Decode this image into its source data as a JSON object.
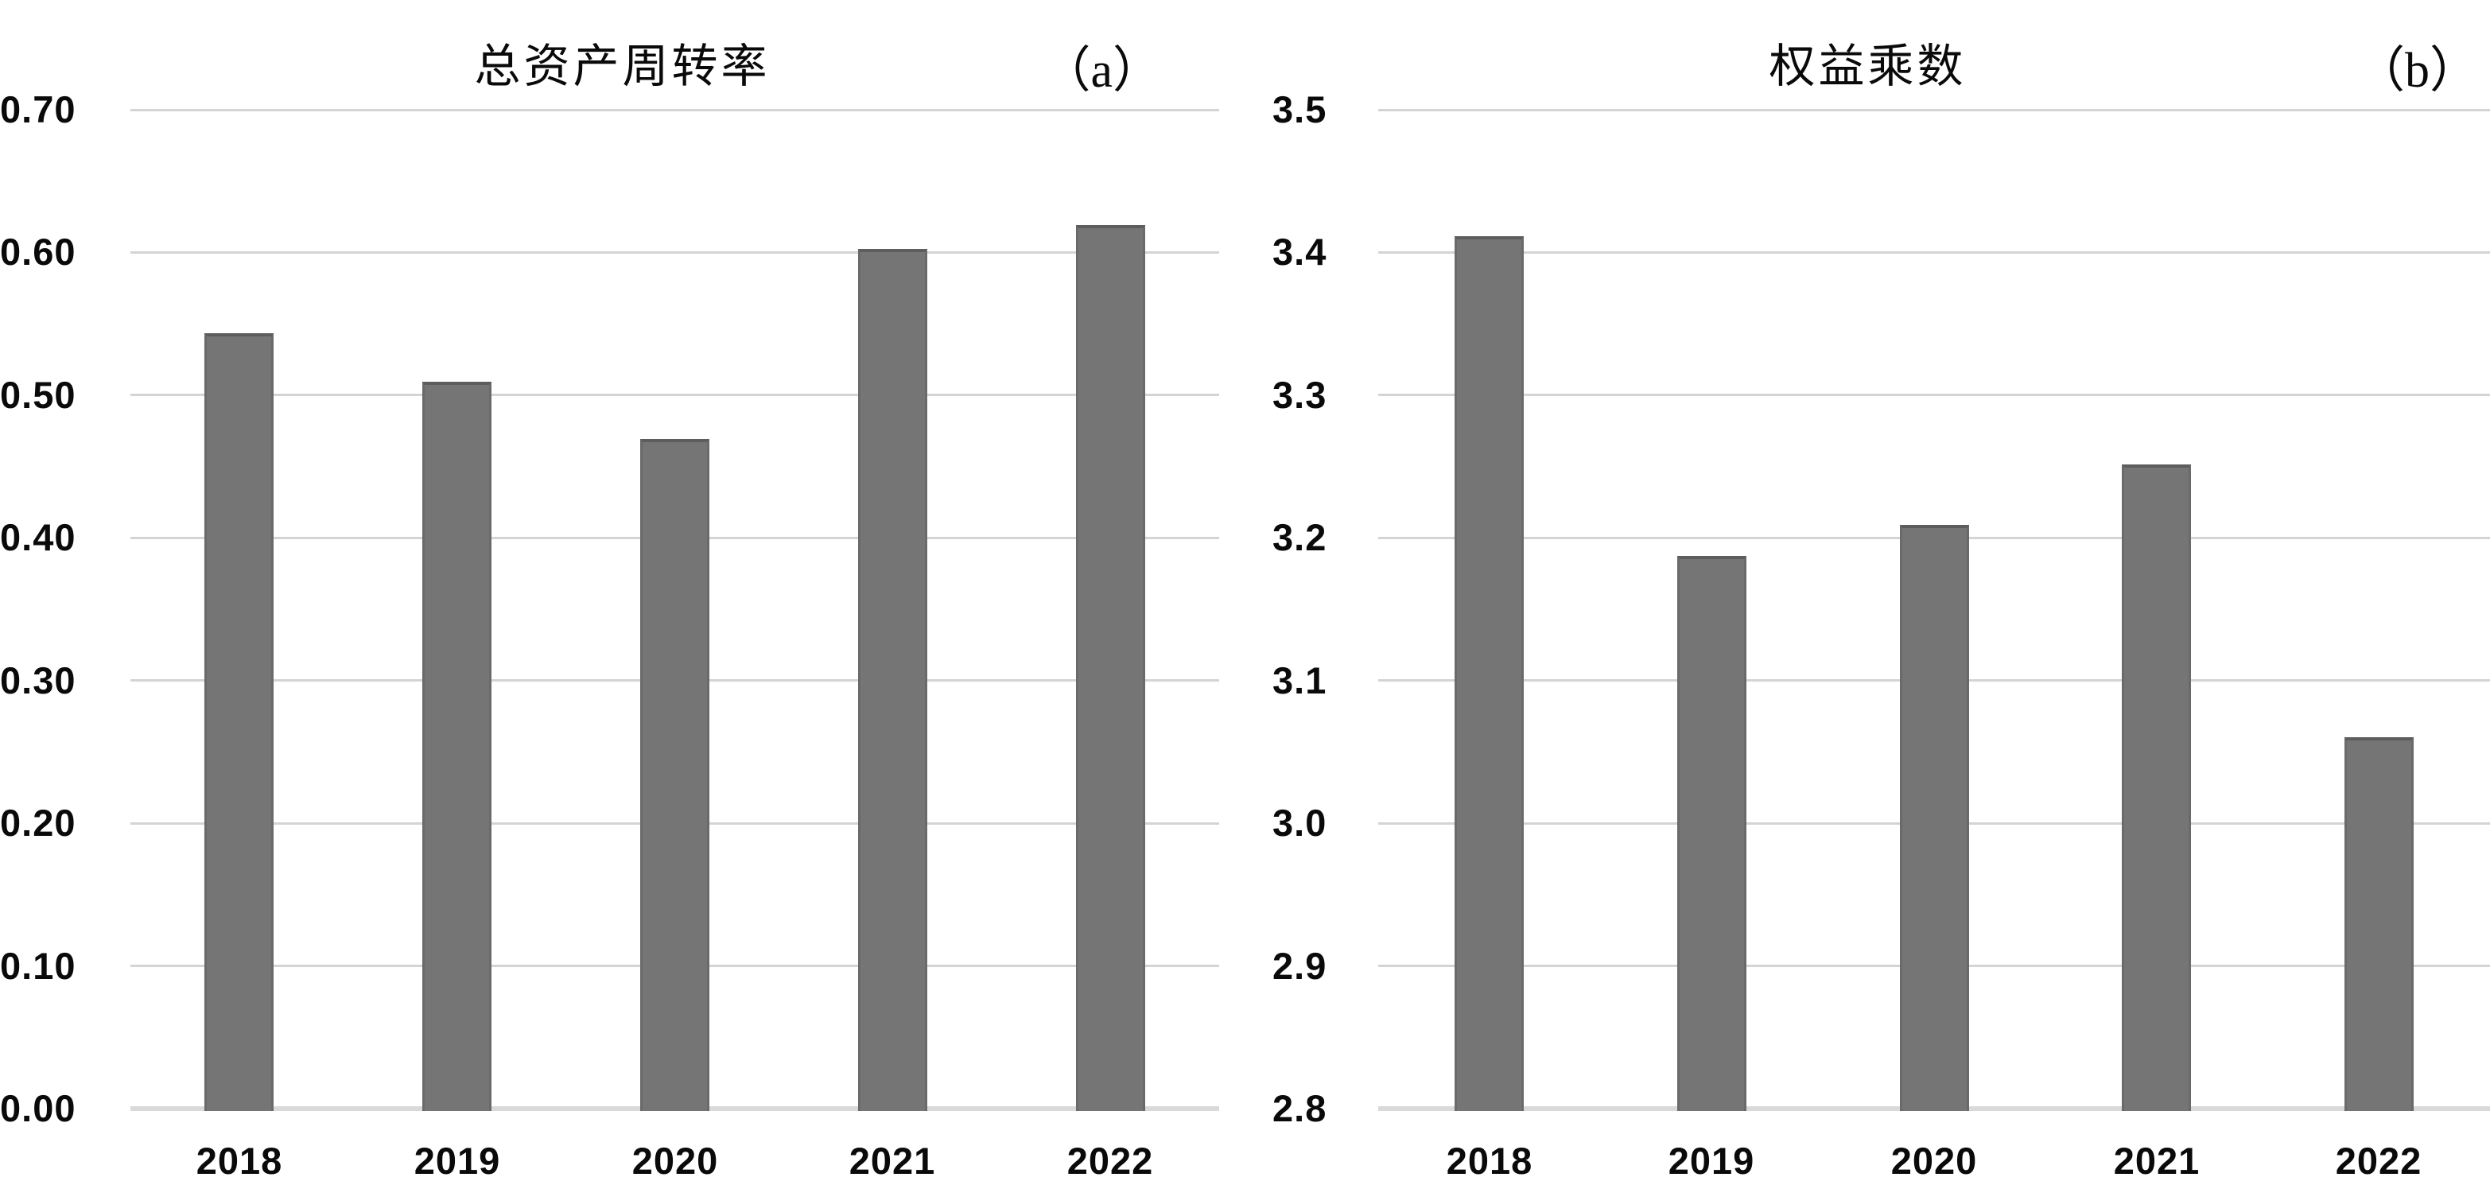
{
  "figure": {
    "background": "#ffffff",
    "panel_count": 2
  },
  "colors": {
    "bar_fill": "#757575",
    "bar_edge": "#5d5d5d",
    "gridline": "#d4d4d4",
    "axis_line": "#d9d9d9",
    "text": "#0a0a0a",
    "background": "#ffffff"
  },
  "chart_data": [
    {
      "type": "bar",
      "panel_label": "（a）",
      "title": "总资产周转率",
      "categories": [
        "2018",
        "2019",
        "2020",
        "2021",
        "2022"
      ],
      "values": [
        0.545,
        0.511,
        0.471,
        0.604,
        0.621
      ],
      "ylim": [
        0.0,
        0.7
      ],
      "y_tick_labels": [
        "0.70",
        "0.60",
        "0.50",
        "0.40",
        "0.30",
        "0.20",
        "0.10",
        "0.00"
      ],
      "xlabel": "",
      "ylabel": "",
      "grid": true,
      "legend_position": "none",
      "bar_color": "#757575"
    },
    {
      "type": "bar",
      "panel_label": "（b）",
      "title": "权益乘数",
      "categories": [
        "2018",
        "2019",
        "2020",
        "2021",
        "2022"
      ],
      "values": [
        3.413,
        3.189,
        3.211,
        3.253,
        3.062
      ],
      "ylim": [
        2.8,
        3.5
      ],
      "y_tick_labels": [
        "3.5",
        "3.4",
        "3.3",
        "3.2",
        "3.1",
        "3.0",
        "2.9",
        "2.8"
      ],
      "xlabel": "",
      "ylabel": "",
      "grid": true,
      "legend_position": "none",
      "bar_color": "#757575"
    }
  ]
}
